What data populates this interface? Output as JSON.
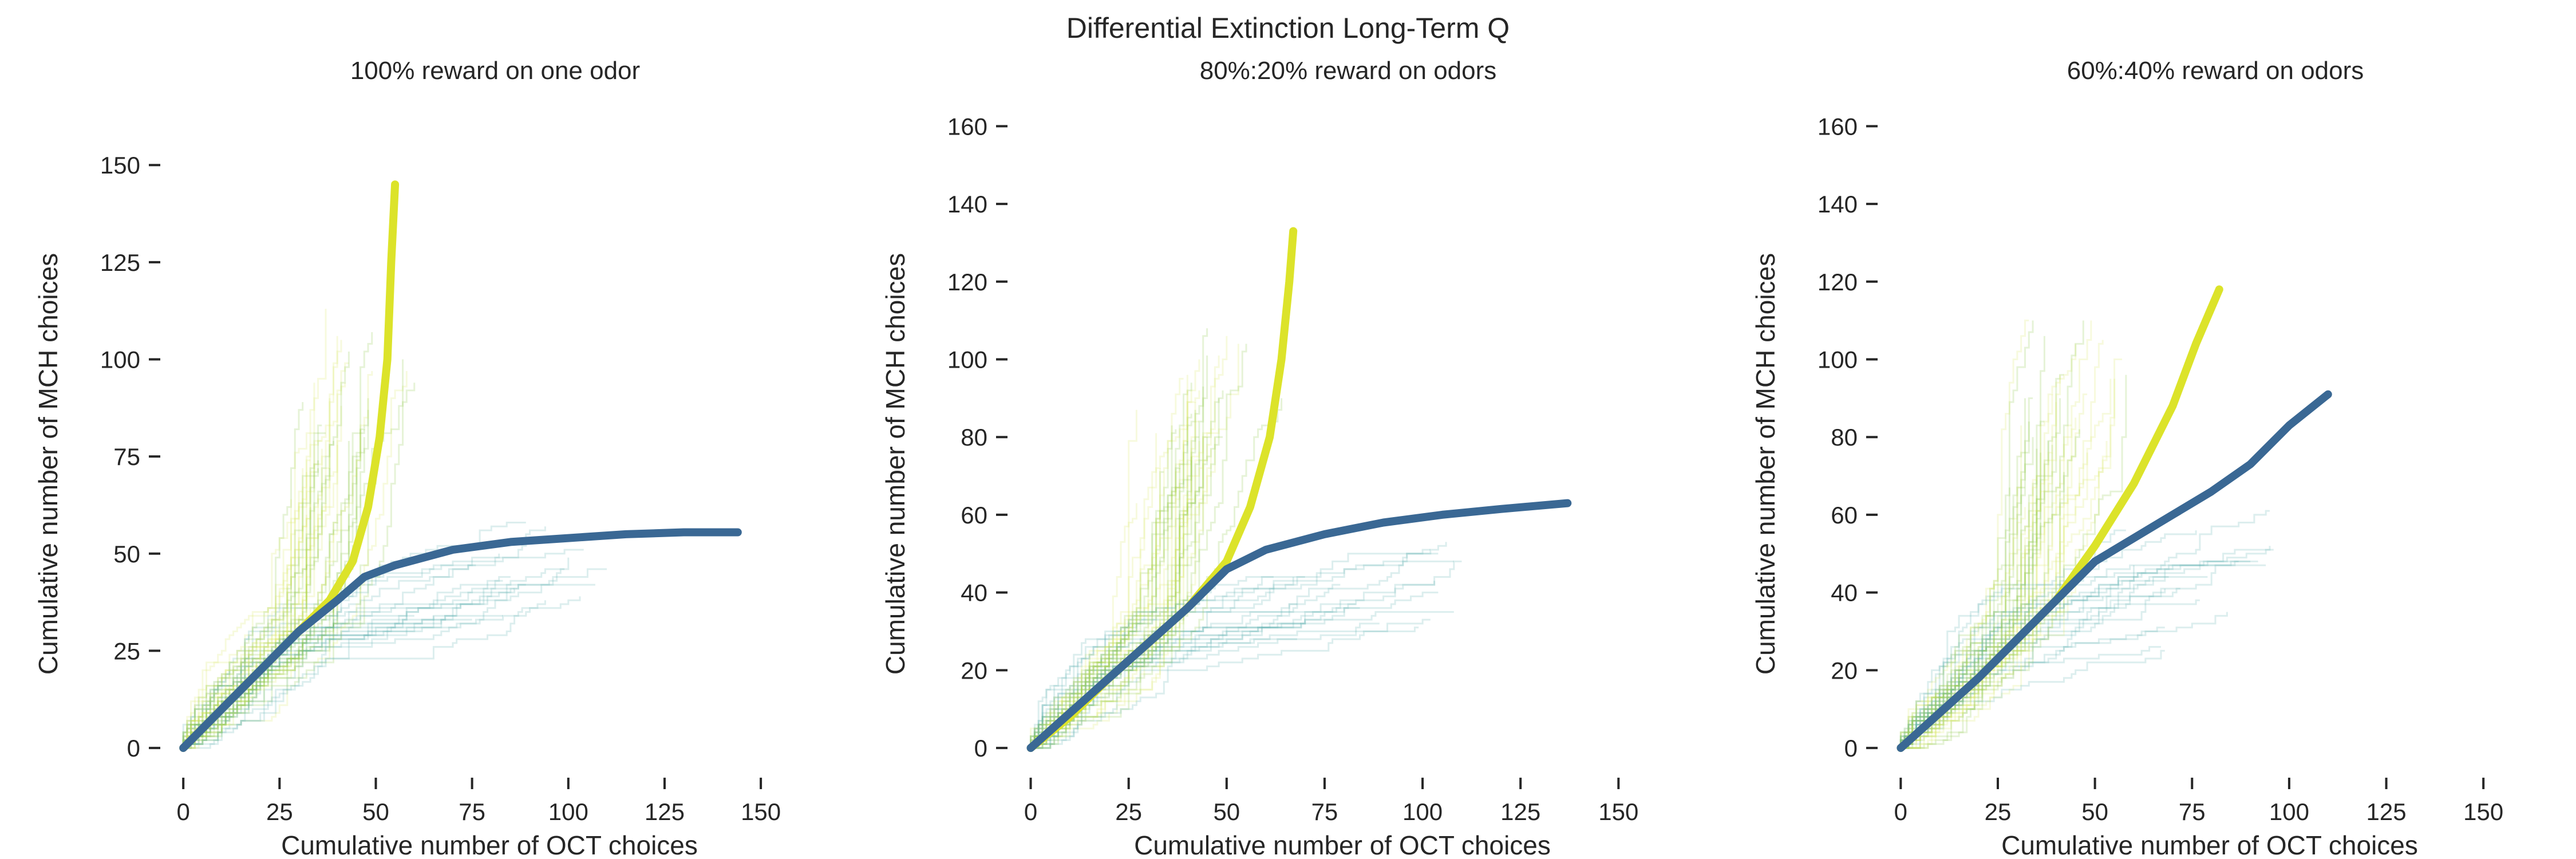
{
  "figure": {
    "suptitle": "Differential Extinction Long-Term Q"
  },
  "colors": {
    "dark_series": "#3a6894",
    "light_series": "#dce32a",
    "trial_blue": "#5fb3b3",
    "trial_green": "#8cc84b",
    "trial_yellow": "#d9e86a",
    "axis": "#262626"
  },
  "chart_data": [
    {
      "type": "line",
      "title": "100% reward on one odor",
      "xlabel": "Cumulative number of OCT choices",
      "ylabel": "Cumulative number of MCH choices",
      "xlim": [
        -3,
        165
      ],
      "ylim": [
        -5,
        163
      ],
      "xticks": [
        0,
        25,
        50,
        75,
        100,
        125,
        150
      ],
      "yticks": [
        0,
        25,
        50,
        75,
        100,
        125,
        150
      ],
      "series": [
        {
          "color": "#dce32a",
          "x": [
            0,
            10,
            20,
            30,
            38,
            44,
            48,
            51,
            53,
            54,
            55
          ],
          "y": [
            0,
            10,
            20,
            30,
            38,
            48,
            62,
            80,
            100,
            125,
            145
          ]
        },
        {
          "color": "#3a6894",
          "x": [
            0,
            10,
            20,
            30,
            40,
            47,
            55,
            70,
            85,
            100,
            115,
            130,
            144
          ],
          "y": [
            0,
            10,
            20,
            30,
            38,
            44,
            47,
            51,
            53,
            54,
            55,
            55.5,
            55.5
          ]
        }
      ]
    },
    {
      "type": "line",
      "title": "80%:20% reward on odors",
      "xlabel": "Cumulative number of OCT choices",
      "ylabel": "Cumulative number of MCH choices",
      "xlim": [
        -3,
        165
      ],
      "ylim": [
        -5,
        163
      ],
      "xticks": [
        0,
        25,
        50,
        75,
        100,
        125,
        150
      ],
      "yticks": [
        0,
        20,
        40,
        60,
        80,
        100,
        120,
        140,
        160
      ],
      "series": [
        {
          "color": "#dce32a",
          "x": [
            0,
            10,
            20,
            30,
            40,
            50,
            56,
            61,
            64,
            66,
            67
          ],
          "y": [
            0,
            8,
            18,
            27,
            36,
            48,
            62,
            80,
            100,
            120,
            133
          ]
        },
        {
          "color": "#3a6894",
          "x": [
            0,
            10,
            20,
            30,
            40,
            50,
            60,
            75,
            90,
            105,
            120,
            137
          ],
          "y": [
            0,
            9,
            18,
            27,
            36,
            46,
            51,
            55,
            58,
            60,
            61.5,
            63
          ]
        }
      ]
    },
    {
      "type": "line",
      "title": "60%:40% reward on odors",
      "xlabel": "Cumulative number of OCT choices",
      "ylabel": "Cumulative number of MCH choices",
      "xlim": [
        -3,
        165
      ],
      "ylim": [
        -5,
        163
      ],
      "xticks": [
        0,
        25,
        50,
        75,
        100,
        125,
        150
      ],
      "yticks": [
        0,
        20,
        40,
        60,
        80,
        100,
        120,
        140,
        160
      ],
      "series": [
        {
          "color": "#dce32a",
          "x": [
            0,
            10,
            20,
            30,
            40,
            50,
            60,
            70,
            76,
            82
          ],
          "y": [
            0,
            9,
            18,
            28,
            38,
            52,
            68,
            88,
            104,
            118
          ]
        },
        {
          "color": "#3a6894",
          "x": [
            0,
            10,
            20,
            30,
            40,
            50,
            60,
            70,
            80,
            90,
            100,
            110
          ],
          "y": [
            0,
            9,
            18,
            28,
            38,
            48,
            54,
            60,
            66,
            73,
            83,
            91
          ]
        }
      ]
    }
  ]
}
